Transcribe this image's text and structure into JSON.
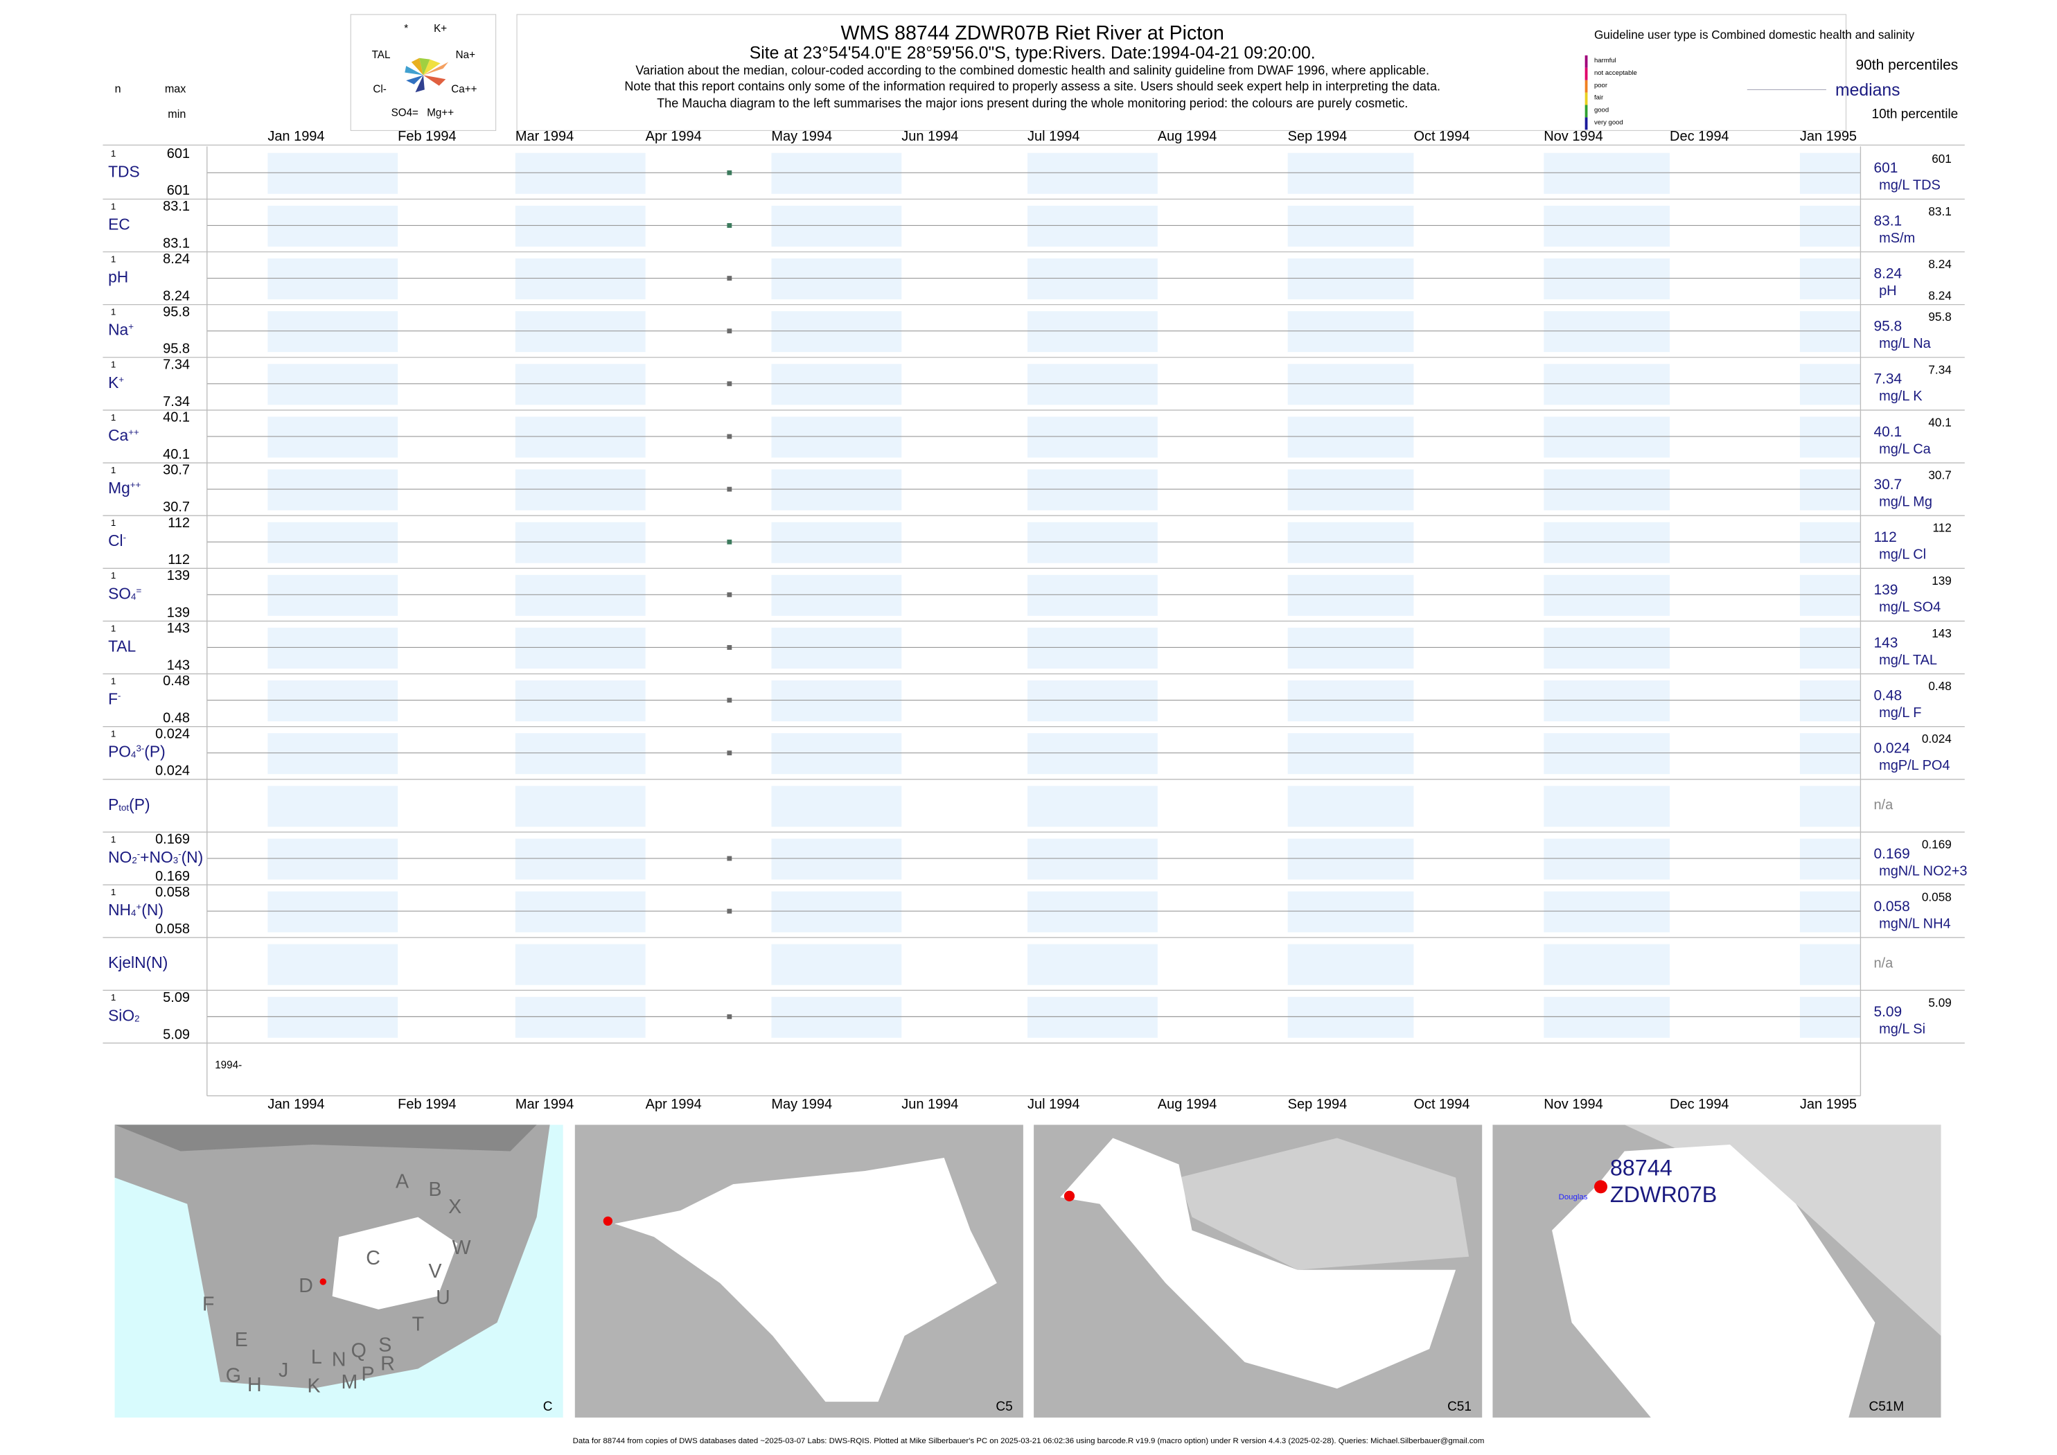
{
  "header": {
    "title": "WMS 88744 ZDWR07B Riet River at Picton",
    "subtitle": "Site at 23°54'54.0\"E 28°59'56.0\"S, type:Rivers. Date:1994-04-21 09:20:00.",
    "notes": [
      "Variation about the median,  colour-coded according to the combined domestic health and salinity guideline from DWAF 1996, where applicable.",
      "Note that this report contains only some of the information required to properly assess a site. Users should seek expert help in interpreting the data.",
      "The Maucha diagram to the left summarises the major ions present during the whole monitoring period: the colours are purely cosmetic."
    ],
    "sample_date": "1994-04-21"
  },
  "maucha": [
    "*",
    "K+",
    "TAL",
    "Na+",
    "Cl-",
    "Ca++",
    "SO4=",
    "Mg++"
  ],
  "guideline": {
    "title": "Guideline user type is Combined domestic health and salinity",
    "levels": [
      {
        "name": "harmful",
        "color": "#a0007a"
      },
      {
        "name": "not acceptable",
        "color": "#e0006a"
      },
      {
        "name": "poor",
        "color": "#f08020"
      },
      {
        "name": "fair",
        "color": "#e8d020"
      },
      {
        "name": "good",
        "color": "#30a030"
      },
      {
        "name": "very good",
        "color": "#1a1a9a"
      }
    ],
    "p90": "90th percentiles",
    "medians": "medians",
    "p10": "10th percentile"
  },
  "columns": {
    "n": "n",
    "max": "max",
    "min": "min"
  },
  "axis": {
    "months": [
      "Jan 1994",
      "Feb 1994",
      "Mar 1994",
      "Apr 1994",
      "May 1994",
      "Jun 1994",
      "Jul 1994",
      "Aug 1994",
      "Sep 1994",
      "Oct 1994",
      "Nov 1994",
      "Dec 1994",
      "Jan 1995"
    ],
    "year_label": "1994-"
  },
  "rows": [
    {
      "label": [
        [
          "TDS",
          ""
        ]
      ],
      "n": 1,
      "max": 601,
      "min": 601,
      "median": 601,
      "unit": "mg/L TDS",
      "p90": 601,
      "color": "#3b7a5c"
    },
    {
      "label": [
        [
          "EC",
          ""
        ]
      ],
      "n": 1,
      "max": 83.1,
      "min": 83.1,
      "median": 83.1,
      "unit": "mS/m",
      "p90": 83.1,
      "color": "#3b7a5c"
    },
    {
      "label": [
        [
          "pH",
          ""
        ]
      ],
      "n": 1,
      "max": 8.24,
      "min": 8.24,
      "median": 8.24,
      "unit": "pH",
      "p90": 8.24,
      "p10": 8.24,
      "color": "#6a6a6a"
    },
    {
      "label": [
        [
          "Na",
          ""
        ],
        [
          "+",
          "sup"
        ]
      ],
      "n": 1,
      "max": 95.8,
      "min": 95.8,
      "median": 95.8,
      "unit": "mg/L Na",
      "p90": 95.8,
      "color": "#6a6a6a"
    },
    {
      "label": [
        [
          "K",
          ""
        ],
        [
          "+",
          "sup"
        ]
      ],
      "n": 1,
      "max": 7.34,
      "min": 7.34,
      "median": 7.34,
      "unit": "mg/L K",
      "p90": 7.34,
      "color": "#6a6a6a"
    },
    {
      "label": [
        [
          "Ca",
          ""
        ],
        [
          "++",
          "sup"
        ]
      ],
      "n": 1,
      "max": 40.1,
      "min": 40.1,
      "median": 40.1,
      "unit": "mg/L Ca",
      "p90": 40.1,
      "color": "#6a6a6a"
    },
    {
      "label": [
        [
          "Mg",
          ""
        ],
        [
          "++",
          "sup"
        ]
      ],
      "n": 1,
      "max": 30.7,
      "min": 30.7,
      "median": 30.7,
      "unit": "mg/L Mg",
      "p90": 30.7,
      "color": "#6a6a6a"
    },
    {
      "label": [
        [
          "Cl",
          ""
        ],
        [
          "-",
          "sup"
        ]
      ],
      "n": 1,
      "max": 112,
      "min": 112,
      "median": 112,
      "unit": "mg/L Cl",
      "p90": 112,
      "color": "#3b7a5c"
    },
    {
      "label": [
        [
          "SO",
          ""
        ],
        [
          "4",
          "sub"
        ],
        [
          "=",
          "sup"
        ]
      ],
      "n": 1,
      "max": 139,
      "min": 139,
      "median": 139,
      "unit": "mg/L SO4",
      "p90": 139,
      "color": "#6a6a6a"
    },
    {
      "label": [
        [
          "TAL",
          ""
        ]
      ],
      "n": 1,
      "max": 143,
      "min": 143,
      "median": 143,
      "unit": "mg/L TAL",
      "p90": 143,
      "color": "#6a6a6a"
    },
    {
      "label": [
        [
          "F",
          ""
        ],
        [
          "-",
          "sup"
        ]
      ],
      "n": 1,
      "max": 0.48,
      "min": 0.48,
      "median": 0.48,
      "unit": "mg/L F",
      "p90": 0.48,
      "color": "#6a6a6a"
    },
    {
      "label": [
        [
          "PO",
          ""
        ],
        [
          "4",
          "sub"
        ],
        [
          "3-",
          "sup"
        ],
        [
          "(P)",
          ""
        ]
      ],
      "n": 1,
      "max": 0.024,
      "min": 0.024,
      "median": 0.024,
      "unit": "mgP/L PO4",
      "p90": 0.024,
      "color": "#6a6a6a"
    },
    {
      "label": [
        [
          "P",
          ""
        ],
        [
          "tot",
          "sub"
        ],
        [
          "(P)",
          ""
        ]
      ],
      "na": "n/a"
    },
    {
      "label": [
        [
          "NO",
          ""
        ],
        [
          "2",
          "sub"
        ],
        [
          "-",
          "sup"
        ],
        [
          "+NO",
          ""
        ],
        [
          "3",
          "sub"
        ],
        [
          "-",
          "sup"
        ],
        [
          "(N)",
          ""
        ]
      ],
      "n": 1,
      "max": 0.169,
      "min": 0.169,
      "median": 0.169,
      "unit": "mgN/L NO2+3",
      "p90": 0.169,
      "color": "#6a6a6a"
    },
    {
      "label": [
        [
          "NH",
          ""
        ],
        [
          "4",
          "sub"
        ],
        [
          "+",
          "sup"
        ],
        [
          "(N)",
          ""
        ]
      ],
      "n": 1,
      "max": 0.058,
      "min": 0.058,
      "median": 0.058,
      "unit": "mgN/L NH4",
      "p90": 0.058,
      "color": "#6a6a6a"
    },
    {
      "label": [
        [
          "KjelN(N)",
          ""
        ]
      ],
      "na": "n/a"
    },
    {
      "label": [
        [
          "SiO",
          ""
        ],
        [
          "2",
          "sub"
        ]
      ],
      "n": 1,
      "max": 5.09,
      "min": 5.09,
      "median": 5.09,
      "unit": "mg/L Si",
      "p90": 5.09,
      "color": "#6a6a6a"
    }
  ],
  "maps": [
    {
      "caption": "C",
      "letters": [
        "A",
        "B",
        "X",
        "W",
        "C",
        "V",
        "D",
        "U",
        "F",
        "T",
        "E",
        "S",
        "Q",
        "L",
        "N",
        "R",
        "J",
        "P",
        "G",
        "H",
        "K",
        "M"
      ]
    },
    {
      "caption": "C5"
    },
    {
      "caption": "C51"
    },
    {
      "caption": "C51M",
      "site": "88744",
      "station": "ZDWR07B",
      "town": "Douglas"
    }
  ],
  "footer": "Data for 88744 from copies of DWS databases dated ~2025-03-07 Labs: DWS-RQIS. Plotted at Mike Silberbauer's PC on 2025-03-21 06:02:36 using barcode.R v19.9 (macro option) under R version 4.4.3 (2025-02-28). Queries: Michael.Silberbauer@gmail.com"
}
